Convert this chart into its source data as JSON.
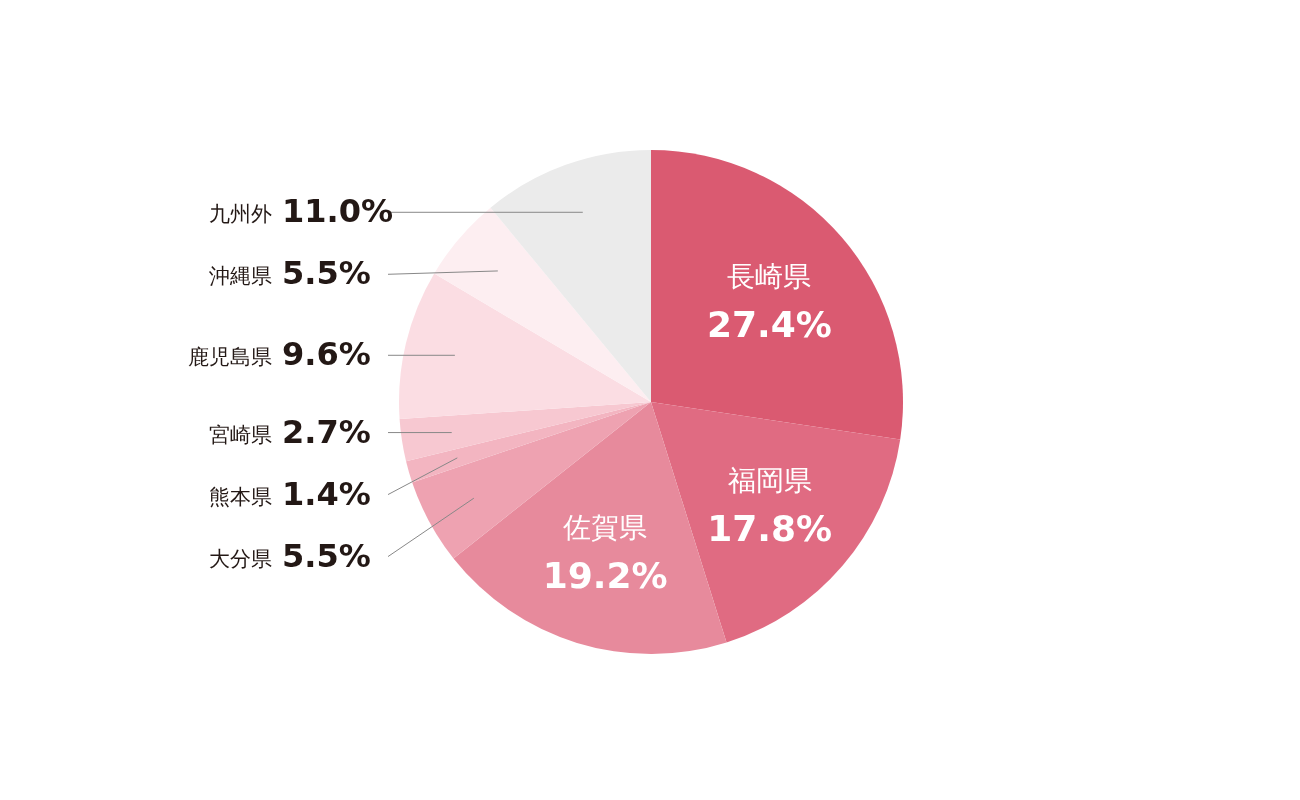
{
  "chart_data": {
    "type": "pie",
    "categories": [
      "長崎県",
      "福岡県",
      "佐賀県",
      "大分県",
      "熊本県",
      "宮崎県",
      "鹿児島県",
      "沖縄県",
      "九州外"
    ],
    "values": [
      27.4,
      17.8,
      19.2,
      5.5,
      1.4,
      2.7,
      9.6,
      5.5,
      11.0
    ],
    "value_labels": [
      "27.4%",
      "17.8%",
      "19.2%",
      "5.5%",
      "1.4%",
      "2.7%",
      "9.6%",
      "5.5%",
      "11.0%"
    ],
    "colors": [
      "#da5a71",
      "#e06b82",
      "#e78a9c",
      "#eea2b1",
      "#f3b5c1",
      "#f7c8d1",
      "#fbdde3",
      "#fdeef1",
      "#ebebeb"
    ]
  }
}
